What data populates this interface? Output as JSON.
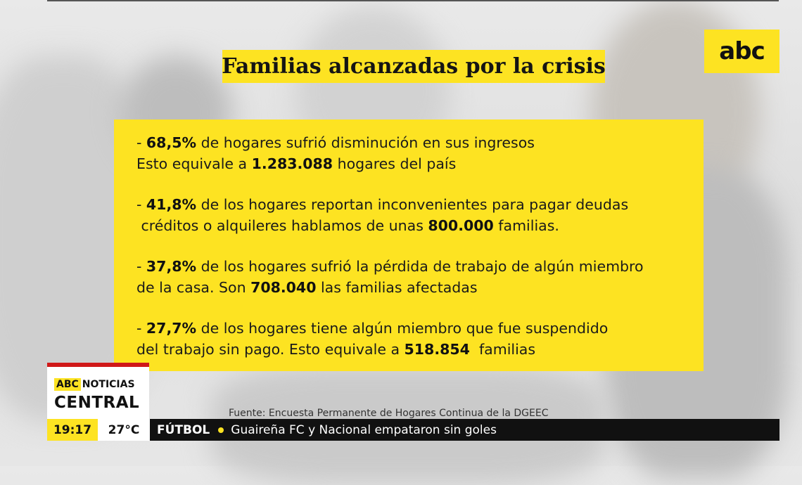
{
  "title": "Familias alcanzadas por la crisis",
  "logo": "abc",
  "stats": [
    {
      "line1": {
        "pre": "- ",
        "bold": "68,5%",
        "post": " de hogares sufrió disminución en sus ingresos"
      },
      "line2": {
        "pre": "Esto equivale a ",
        "bold": "1.283.088",
        "post": " hogares del país"
      }
    },
    {
      "line1": {
        "pre": "- ",
        "bold": "41,8%",
        "post": " de los hogares reportan inconvenientes para pagar deudas"
      },
      "line2": {
        "pre": " créditos o alquileres hablamos de unas ",
        "bold": "800.000",
        "post": " familias."
      }
    },
    {
      "line1": {
        "pre": "- ",
        "bold": "37,8%",
        "post": " de los hogares sufrió la pérdida de trabajo de algún miembro"
      },
      "line2": {
        "pre": "de la casa. Son ",
        "bold": "708.040",
        "post": " las familias afectadas"
      }
    },
    {
      "line1": {
        "pre": "- ",
        "bold": "27,7%",
        "post": " de los hogares tiene algún miembro que fue suspendido"
      },
      "line2": {
        "pre": "del trabajo sin pago. Esto equivale a ",
        "bold": "518.854",
        "post": "  familias"
      }
    }
  ],
  "source": "Fuente: Encuesta Permanente de Hogares Continua de la DGEEC",
  "brand": {
    "abc": "ABC",
    "noticias": "NOTICIAS",
    "central": "CENTRAL"
  },
  "ticker": {
    "time": "19:17",
    "temperature": "27°C",
    "category": "FÚTBOL",
    "headline": "Guaireña FC y Nacional empataron sin goles"
  },
  "colors": {
    "accent": "#fde322",
    "ticker_bg": "#111111",
    "brand_red": "#d01818"
  }
}
